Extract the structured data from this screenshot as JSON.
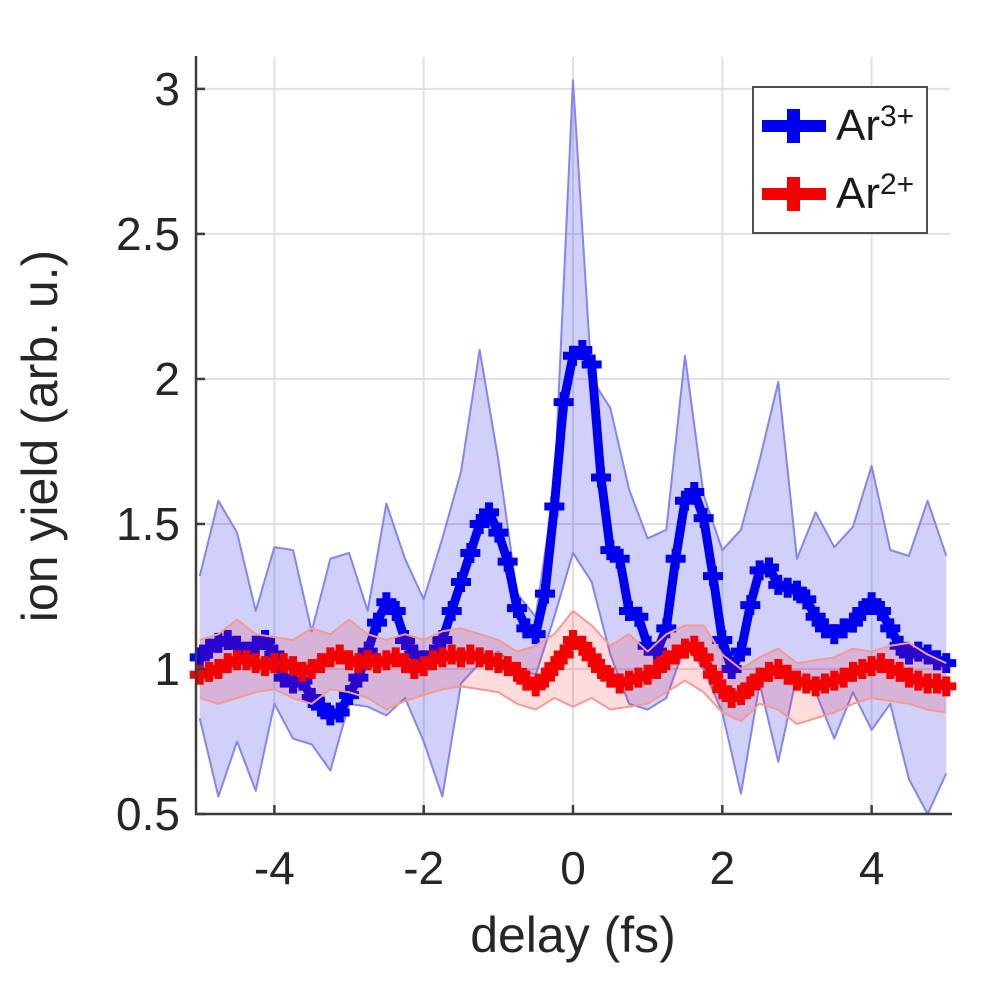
{
  "figure": {
    "background": "#ffffff",
    "text_color": "#262626",
    "axis_color": "#3c3c3c",
    "grid_color": "#e0e0e0"
  },
  "chart_data": {
    "type": "line",
    "title": "",
    "xlabel": "delay (fs)",
    "ylabel": "ion yield (arb. u.)",
    "xlim": [
      -5.05,
      5.05
    ],
    "ylim": [
      0.5,
      3.11
    ],
    "x_ticks": [
      -4,
      -2,
      0,
      2,
      4
    ],
    "y_ticks": [
      0.5,
      1,
      1.5,
      2,
      2.5,
      3
    ],
    "grid": true,
    "legend_position": "top-right",
    "x_start": -5,
    "x_step": 0.125,
    "band_x_start": -5,
    "band_x_step": 0.25,
    "series": [
      {
        "name": "Ar3+",
        "label_base": "Ar",
        "label_sup": "3+",
        "color": "#0000f0",
        "marker": "plus",
        "y": [
          1.04,
          1.07,
          1.09,
          1.1,
          1.08,
          1.06,
          1.08,
          1.1,
          1.05,
          0.97,
          0.95,
          0.96,
          0.9,
          0.87,
          0.84,
          0.85,
          0.91,
          0.97,
          1.06,
          1.16,
          1.23,
          1.2,
          1.1,
          1.05,
          1.03,
          1.05,
          1.1,
          1.2,
          1.3,
          1.4,
          1.5,
          1.54,
          1.47,
          1.37,
          1.21,
          1.14,
          1.12,
          1.26,
          1.56,
          1.92,
          2.08,
          2.1,
          2.05,
          1.66,
          1.41,
          1.38,
          1.2,
          1.18,
          1.08,
          1.06,
          1.14,
          1.38,
          1.58,
          1.61,
          1.52,
          1.32,
          1.1,
          1.0,
          1.06,
          1.22,
          1.34,
          1.35,
          1.29,
          1.28,
          1.27,
          1.24,
          1.18,
          1.14,
          1.12,
          1.14,
          1.16,
          1.2,
          1.23,
          1.2,
          1.14,
          1.08,
          1.05,
          1.06,
          1.05,
          1.03,
          1.02
        ],
        "band_upper": [
          1.32,
          1.58,
          1.47,
          1.2,
          1.42,
          1.41,
          1.13,
          1.38,
          1.4,
          1.2,
          1.57,
          1.38,
          1.24,
          1.45,
          1.68,
          2.1,
          1.72,
          1.26,
          1.18,
          1.62,
          3.03,
          2.0,
          1.9,
          1.62,
          1.45,
          1.48,
          2.08,
          1.6,
          1.41,
          1.48,
          1.72,
          1.99,
          1.38,
          1.54,
          1.42,
          1.49,
          1.7,
          1.41,
          1.39,
          1.58,
          1.39
        ],
        "band_lower": [
          0.83,
          0.56,
          0.75,
          0.58,
          0.88,
          0.76,
          0.74,
          0.65,
          0.88,
          0.87,
          0.84,
          0.9,
          0.75,
          0.56,
          0.95,
          1.02,
          1.06,
          1.0,
          0.98,
          1.18,
          1.4,
          1.3,
          1.05,
          0.88,
          0.86,
          0.9,
          1.08,
          1.0,
          0.85,
          0.57,
          0.95,
          0.68,
          0.98,
          0.92,
          0.76,
          0.92,
          0.79,
          0.88,
          0.62,
          0.5,
          0.64
        ],
        "band_fill": "rgba(20,20,235,0.20)",
        "band_edge": "#8585ec"
      },
      {
        "name": "Ar2+",
        "label_base": "Ar",
        "label_sup": "2+",
        "color": "#f40000",
        "marker": "plus",
        "y": [
          0.98,
          0.99,
          1.0,
          1.02,
          1.03,
          1.03,
          1.02,
          1.01,
          1.02,
          1.02,
          1.01,
          0.99,
          1.0,
          1.02,
          1.04,
          1.05,
          1.03,
          1.02,
          1.03,
          1.02,
          1.03,
          1.04,
          1.02,
          1.0,
          1.01,
          1.03,
          1.04,
          1.05,
          1.04,
          1.05,
          1.04,
          1.03,
          1.02,
          1.01,
          0.99,
          0.96,
          0.94,
          0.97,
          1.01,
          1.05,
          1.1,
          1.08,
          1.04,
          1.0,
          0.97,
          0.95,
          0.96,
          0.97,
          0.98,
          1.0,
          1.03,
          1.05,
          1.07,
          1.08,
          1.04,
          0.98,
          0.93,
          0.9,
          0.91,
          0.94,
          0.97,
          0.99,
          1.0,
          0.98,
          0.96,
          0.95,
          0.94,
          0.95,
          0.96,
          0.97,
          0.99,
          1.0,
          1.01,
          1.02,
          1.0,
          0.99,
          0.97,
          0.96,
          0.95,
          0.95,
          0.94
        ],
        "band_upper": [
          1.1,
          1.12,
          1.17,
          1.12,
          1.11,
          1.1,
          1.14,
          1.12,
          1.17,
          1.12,
          1.1,
          1.12,
          1.1,
          1.13,
          1.14,
          1.12,
          1.1,
          1.06,
          1.08,
          1.12,
          1.2,
          1.15,
          1.08,
          1.12,
          1.06,
          1.12,
          1.15,
          1.15,
          1.05,
          1.0,
          1.04,
          1.07,
          1.02,
          1.03,
          1.04,
          1.07,
          1.06,
          1.08,
          1.09,
          1.05,
          1.02
        ],
        "band_lower": [
          0.9,
          0.88,
          0.9,
          0.92,
          0.93,
          0.9,
          0.88,
          0.93,
          0.92,
          0.9,
          0.86,
          0.89,
          0.91,
          0.93,
          0.94,
          0.93,
          0.92,
          0.88,
          0.86,
          0.9,
          0.87,
          0.9,
          0.86,
          0.87,
          0.88,
          0.92,
          0.96,
          0.92,
          0.85,
          0.82,
          0.88,
          0.86,
          0.81,
          0.83,
          0.85,
          0.88,
          0.9,
          0.89,
          0.88,
          0.86,
          0.85
        ],
        "band_fill": "rgba(255,30,30,0.16)",
        "band_edge": "#f59a93"
      }
    ],
    "legend": {
      "border_color": "#4f4f4f",
      "background": "#ffffff"
    }
  }
}
